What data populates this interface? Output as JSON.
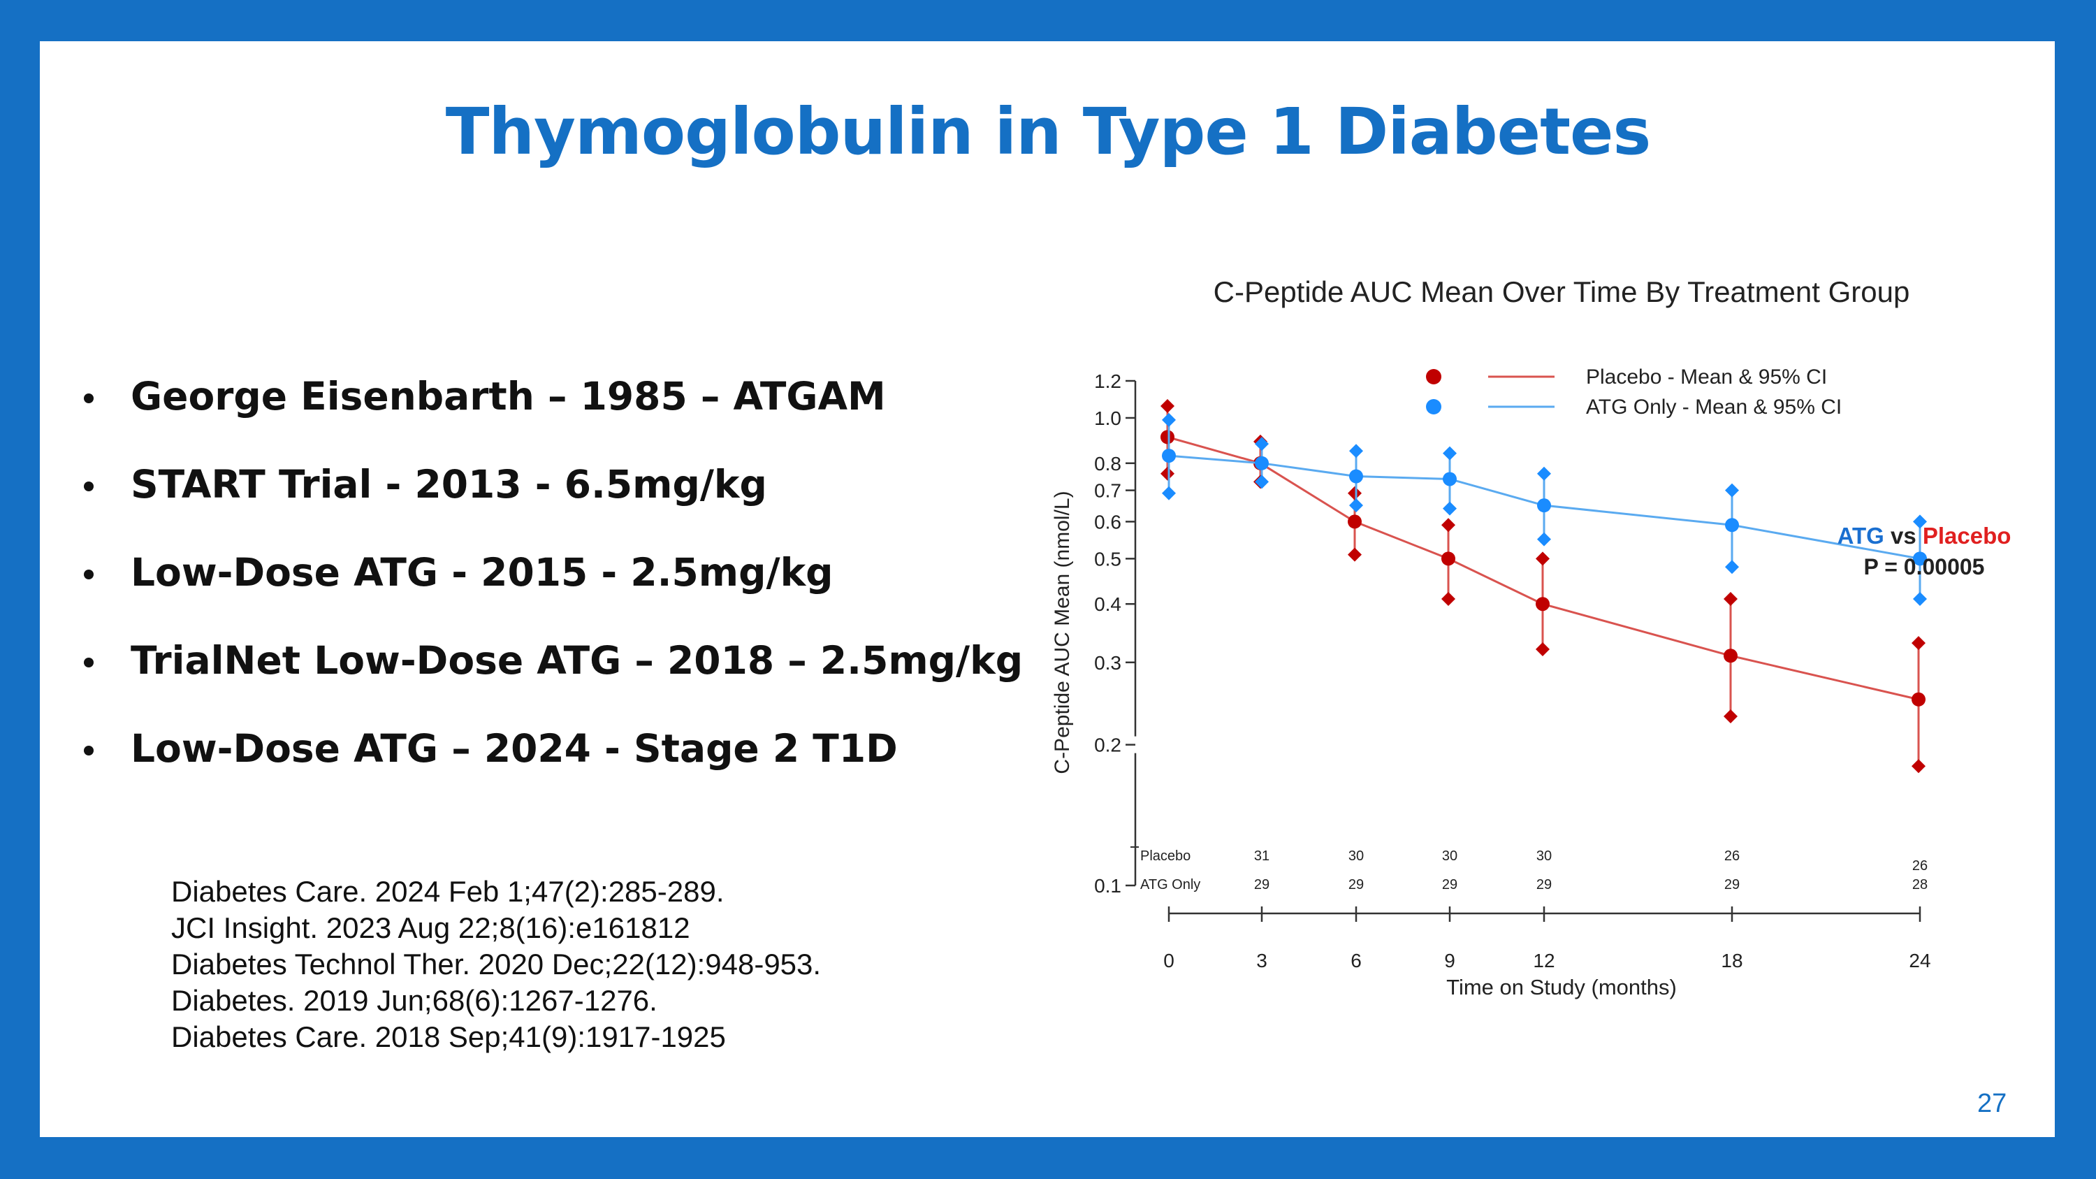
{
  "slide": {
    "title": "Thymoglobulin in Type 1 Diabetes",
    "page_number": "27",
    "bullets": [
      "George Eisenbarth – 1985 – ATGAM",
      "START Trial - 2013 - 6.5mg/kg",
      "Low-Dose ATG - 2015 - 2.5mg/kg",
      "TrialNet Low-Dose ATG – 2018 – 2.5mg/kg",
      "Low-Dose ATG – 2024 - Stage 2 T1D"
    ],
    "references": [
      "Diabetes Care. 2024 Feb 1;47(2):285-289.",
      "JCI Insight. 2023 Aug 22;8(16):e161812",
      "Diabetes Technol Ther. 2020 Dec;22(12):948-953.",
      "Diabetes. 2019 Jun;68(6):1267-1276.",
      "Diabetes Care. 2018 Sep;41(9):1917-1925"
    ]
  },
  "chart_data": {
    "type": "line",
    "title": "C-Peptide AUC Mean Over Time By Treatment Group",
    "xlabel": "Time on Study (months)",
    "ylabel": "C-Peptide AUC Mean (nmol/L)",
    "y_scale": "log",
    "ylim": [
      0.1,
      1.2
    ],
    "y_ticks": [
      0.1,
      0.2,
      0.3,
      0.4,
      0.5,
      0.6,
      0.7,
      0.8,
      1.0,
      1.2
    ],
    "y_tick_labels": [
      "0.1",
      "0.2",
      "0.3",
      "0.4",
      "0.5",
      "0.6",
      "0.7",
      "0.8",
      "1.0",
      "1.2"
    ],
    "x": [
      0,
      3,
      6,
      9,
      12,
      18,
      24
    ],
    "x_tick_labels": [
      "0",
      "3",
      "6",
      "9",
      "12",
      "18",
      "24"
    ],
    "series": [
      {
        "name": "Placebo - Mean & 95% CI",
        "color": "#c00000",
        "line_color": "#d9534f",
        "mean": [
          0.91,
          0.8,
          0.6,
          0.5,
          0.4,
          0.31,
          0.25
        ],
        "ci_low": [
          0.76,
          0.73,
          0.51,
          0.41,
          0.32,
          0.23,
          0.18
        ],
        "ci_high": [
          1.06,
          0.89,
          0.69,
          0.59,
          0.5,
          0.41,
          0.33
        ]
      },
      {
        "name": "ATG Only - Mean & 95% CI",
        "color": "#1a8cff",
        "line_color": "#5aaaf0",
        "mean": [
          0.83,
          0.8,
          0.75,
          0.74,
          0.65,
          0.59,
          0.5
        ],
        "ci_low": [
          0.69,
          0.73,
          0.65,
          0.64,
          0.55,
          0.48,
          0.41
        ],
        "ci_high": [
          0.99,
          0.88,
          0.85,
          0.84,
          0.76,
          0.7,
          0.6
        ]
      }
    ],
    "risk_table": {
      "rows": [
        {
          "label": "Placebo",
          "counts": [
            "",
            "31",
            "30",
            "30",
            "30",
            "26",
            "26"
          ]
        },
        {
          "label": "ATG Only",
          "counts": [
            "",
            "29",
            "29",
            "29",
            "29",
            "29",
            "28"
          ]
        }
      ]
    },
    "annotation": {
      "atg": "ATG",
      "vs": "vs",
      "placebo": "Placebo",
      "atg_color": "#1a6fd0",
      "placebo_color": "#e02020",
      "p_value": "P = 0.00005"
    },
    "legend_position": "top"
  }
}
